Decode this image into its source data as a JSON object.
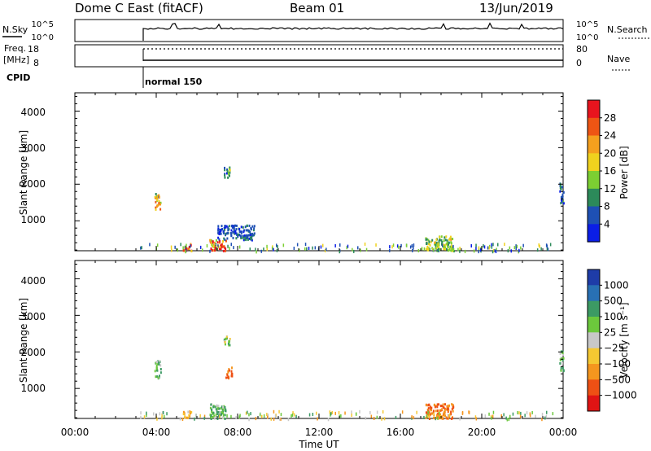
{
  "header": {
    "station": "Dome C East (fitACF)",
    "beam": "Beam 01",
    "date": "13/Jun/2019"
  },
  "status_panels": {
    "nsky_label": "N.Sky",
    "nsearch_label": "N.Search",
    "nsky_ticks": [
      "10^5",
      "10^0"
    ],
    "nsearch_ticks": [
      "10^5",
      "10^0"
    ],
    "freq_label": "Freq.",
    "freq_unit": "[MHz]",
    "freq_ticks": [
      "18",
      "8"
    ],
    "nave_label": "Nave",
    "nave_ticks": [
      "80",
      "0"
    ],
    "cpid_label": "CPID",
    "cpid_value": "normal 150"
  },
  "time_axis": {
    "label": "Time UT",
    "ticks": [
      "00:00",
      "04:00",
      "08:00",
      "12:00",
      "16:00",
      "20:00",
      "00:00"
    ]
  },
  "range_axis": {
    "label": "Slant Range [km]",
    "ticks": [
      "1000",
      "2000",
      "3000",
      "4000"
    ]
  },
  "power_scale": {
    "label": "Power [dB]",
    "ticks": [
      "4",
      "8",
      "12",
      "16",
      "20",
      "24",
      "28"
    ],
    "colors": [
      "#0b1ee6",
      "#1e50b4",
      "#2c8a5a",
      "#7ccf32",
      "#f0d21e",
      "#f5a01e",
      "#ee5514",
      "#e8141e"
    ]
  },
  "velocity_scale": {
    "label": "Velocity [m s⁻¹]",
    "ticks": [
      "1000",
      "500",
      "100",
      "25",
      "−25",
      "−100",
      "−500",
      "−1000"
    ],
    "colors": [
      "#1e3ca8",
      "#2870b4",
      "#3c9a64",
      "#6cc83c",
      "#c8c8c8",
      "#f5c832",
      "#f5961e",
      "#ee5014",
      "#e01414"
    ]
  },
  "colors": {
    "axis": "#000000",
    "background": "#ffffff"
  },
  "chart_data": [
    {
      "type": "heatmap",
      "title": "Power",
      "xlabel": "Time UT",
      "ylabel": "Slant Range [km]",
      "xlim_hours": [
        0,
        24
      ],
      "ylim_km": [
        180,
        4500
      ],
      "colorbar": "Power [dB]",
      "colorbar_range": [
        0,
        32
      ],
      "approx_echo_regions": [
        {
          "t_start_h": 3.9,
          "t_end_h": 4.2,
          "r_min_km": 1300,
          "r_max_km": 1800,
          "value_db": 18
        },
        {
          "t_start_h": 5.3,
          "t_end_h": 5.7,
          "r_min_km": 200,
          "r_max_km": 400,
          "value_db": 28
        },
        {
          "t_start_h": 6.6,
          "t_end_h": 7.4,
          "r_min_km": 200,
          "r_max_km": 500,
          "value_db": 26
        },
        {
          "t_start_h": 7.3,
          "t_end_h": 7.6,
          "r_min_km": 2200,
          "r_max_km": 2500,
          "value_db": 10
        },
        {
          "t_start_h": 7.0,
          "t_end_h": 8.8,
          "r_min_km": 500,
          "r_max_km": 900,
          "value_db": 6
        },
        {
          "t_start_h": 17.2,
          "t_end_h": 18.6,
          "r_min_km": 200,
          "r_max_km": 600,
          "value_db": 14
        },
        {
          "t_start_h": 23.8,
          "t_end_h": 24.0,
          "r_min_km": 1500,
          "r_max_km": 2050,
          "value_db": 8
        }
      ]
    },
    {
      "type": "heatmap",
      "title": "Velocity",
      "xlabel": "Time UT",
      "ylabel": "Slant Range [km]",
      "xlim_hours": [
        0,
        24
      ],
      "ylim_km": [
        180,
        4500
      ],
      "colorbar": "Velocity [m s⁻¹]",
      "colorbar_range": [
        -1000,
        1000
      ],
      "approx_echo_regions": [
        {
          "t_start_h": 3.9,
          "t_end_h": 4.2,
          "r_min_km": 1300,
          "r_max_km": 1800,
          "value_ms": 100
        },
        {
          "t_start_h": 5.3,
          "t_end_h": 5.7,
          "r_min_km": 200,
          "r_max_km": 400,
          "value_ms": -100
        },
        {
          "t_start_h": 6.6,
          "t_end_h": 7.4,
          "r_min_km": 200,
          "r_max_km": 600,
          "value_ms": 100
        },
        {
          "t_start_h": 7.3,
          "t_end_h": 7.6,
          "r_min_km": 2200,
          "r_max_km": 2500,
          "value_ms": 25
        },
        {
          "t_start_h": 7.4,
          "t_end_h": 7.7,
          "r_min_km": 1300,
          "r_max_km": 1600,
          "value_ms": -500
        },
        {
          "t_start_h": 17.2,
          "t_end_h": 18.6,
          "r_min_km": 200,
          "r_max_km": 600,
          "value_ms": -500
        },
        {
          "t_start_h": 23.8,
          "t_end_h": 24.0,
          "r_min_km": 1500,
          "r_max_km": 2050,
          "value_ms": 100
        }
      ]
    }
  ]
}
